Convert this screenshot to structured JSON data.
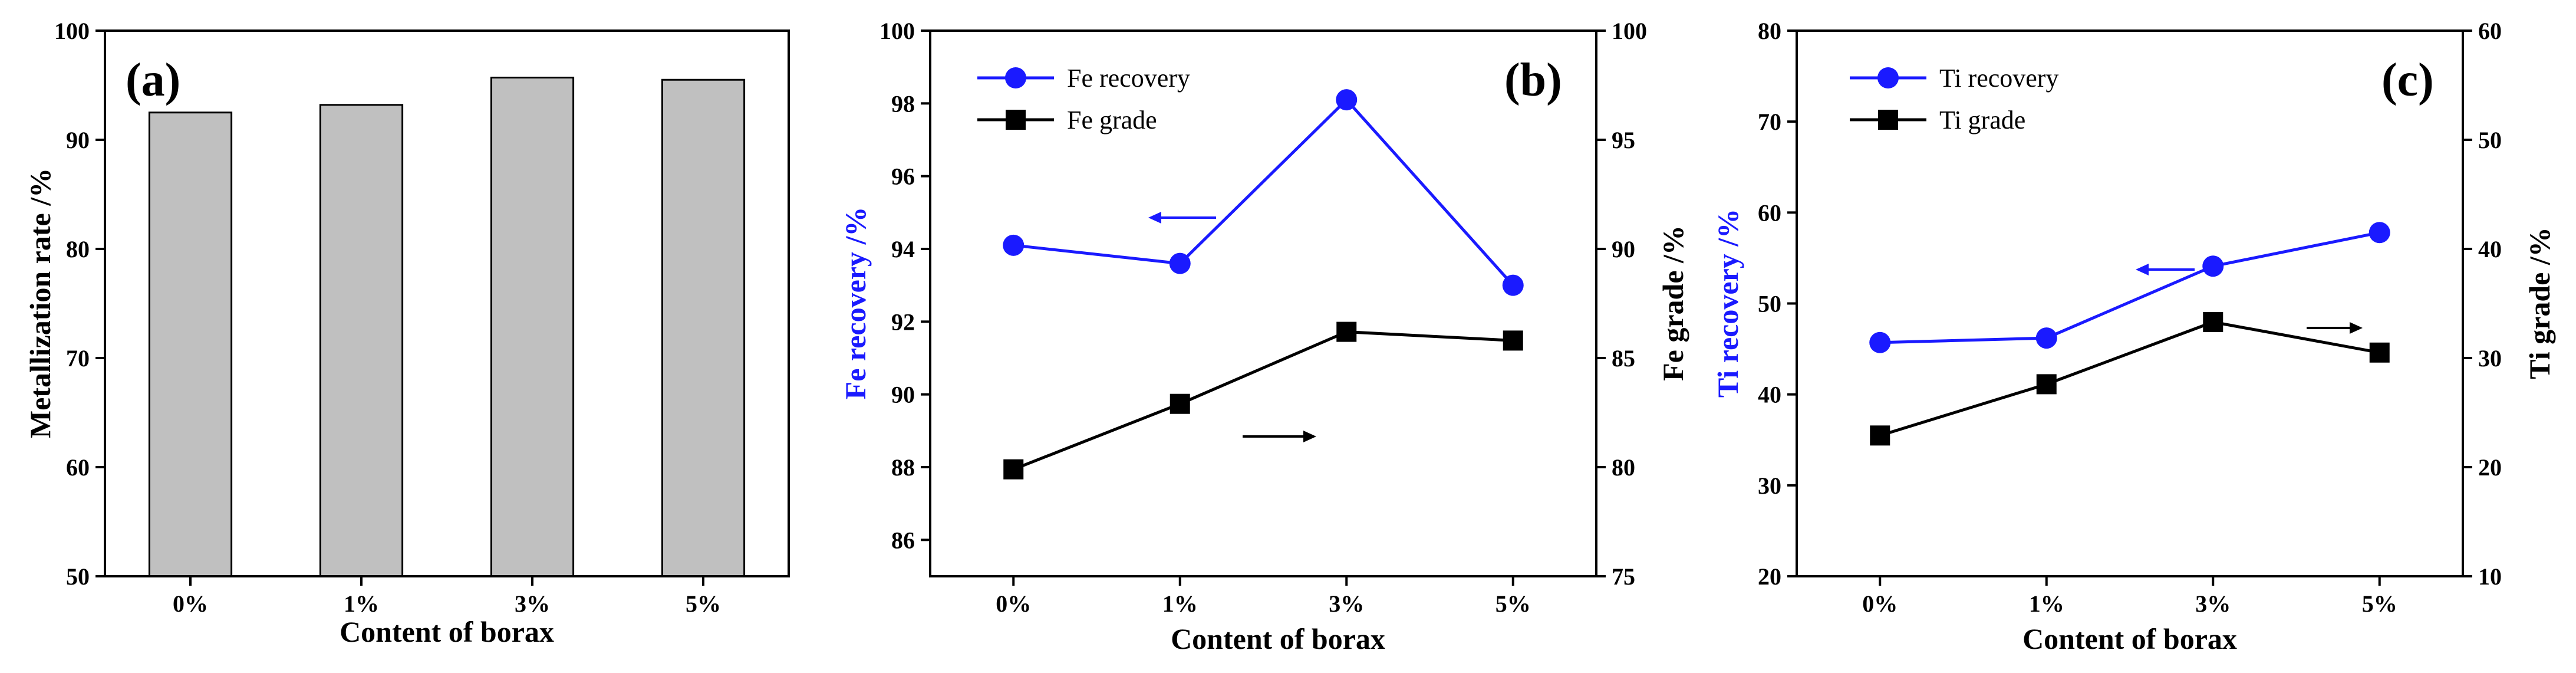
{
  "chart_data": [
    {
      "type": "bar",
      "panel_label": "(a)",
      "categories": [
        "0%",
        "1%",
        "3%",
        "5%"
      ],
      "values": [
        92.5,
        93.2,
        95.7,
        95.5
      ],
      "xlabel": "Content of borax",
      "ylabel": "Metallization rate /%",
      "ylim": [
        50,
        100
      ],
      "yticks": [
        50,
        60,
        70,
        80,
        90,
        100
      ],
      "bar_color": "#c0c0c0",
      "grid": false
    },
    {
      "type": "line",
      "panel_label": "(b)",
      "categories": [
        "0%",
        "1%",
        "3%",
        "5%"
      ],
      "xlabel": "Content of borax",
      "ylabel": "Fe recovery /%",
      "y2label": "Fe grade /%",
      "ylim": [
        85,
        100
      ],
      "yticks": [
        86,
        88,
        90,
        92,
        94,
        96,
        98,
        100
      ],
      "y2lim": [
        75,
        100
      ],
      "y2ticks": [
        75,
        80,
        85,
        90,
        95,
        100
      ],
      "legend_position": "top-left",
      "series": [
        {
          "name": "Fe recovery",
          "axis": "left",
          "values": [
            94.1,
            93.6,
            98.1,
            93.0
          ],
          "color": "#1a1aff",
          "marker": "circle"
        },
        {
          "name": "Fe grade",
          "axis": "right",
          "values": [
            79.9,
            82.9,
            86.2,
            85.8
          ],
          "color": "#000000",
          "marker": "square"
        }
      ],
      "grid": false
    },
    {
      "type": "line",
      "panel_label": "(c)",
      "categories": [
        "0%",
        "1%",
        "3%",
        "5%"
      ],
      "xlabel": "Content of borax",
      "ylabel": "Ti recovery /%",
      "y2label": "Ti grade /%",
      "ylim": [
        20,
        80
      ],
      "yticks": [
        20,
        30,
        40,
        50,
        60,
        70,
        80
      ],
      "y2lim": [
        10,
        60
      ],
      "y2ticks": [
        10,
        20,
        30,
        40,
        50,
        60
      ],
      "legend_position": "top-left",
      "series": [
        {
          "name": "Ti recovery",
          "axis": "left",
          "values": [
            45.7,
            46.2,
            54.1,
            57.8
          ],
          "color": "#1a1aff",
          "marker": "circle"
        },
        {
          "name": "Ti grade",
          "axis": "right",
          "values": [
            22.9,
            27.6,
            33.3,
            30.5
          ],
          "color": "#000000",
          "marker": "square"
        }
      ],
      "grid": false
    }
  ]
}
